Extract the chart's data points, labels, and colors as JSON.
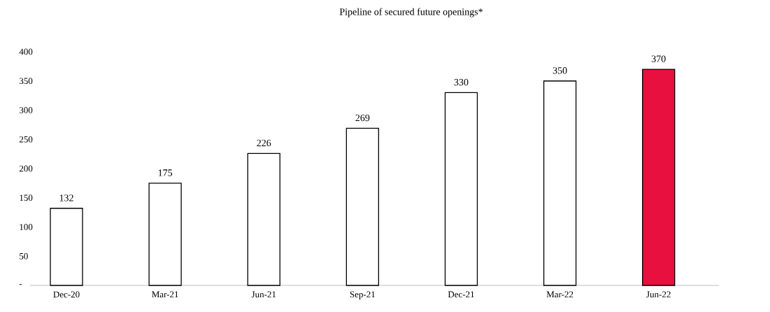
{
  "chart_data": {
    "type": "bar",
    "title": "Pipeline of secured future openings*",
    "categories": [
      "Dec-20",
      "Mar-21",
      "Jun-21",
      "Sep-21",
      "Dec-21",
      "Mar-22",
      "Jun-22"
    ],
    "values": [
      132,
      175,
      226,
      269,
      330,
      350,
      370
    ],
    "colors": [
      "#ffffff",
      "#ffffff",
      "#ffffff",
      "#ffffff",
      "#ffffff",
      "#ffffff",
      "#e8103f"
    ],
    "ylim": [
      0,
      400
    ],
    "yticks": [
      {
        "value": 0,
        "label": "-"
      },
      50,
      100,
      150,
      200,
      250,
      300,
      350,
      400
    ],
    "data_labels": true
  }
}
